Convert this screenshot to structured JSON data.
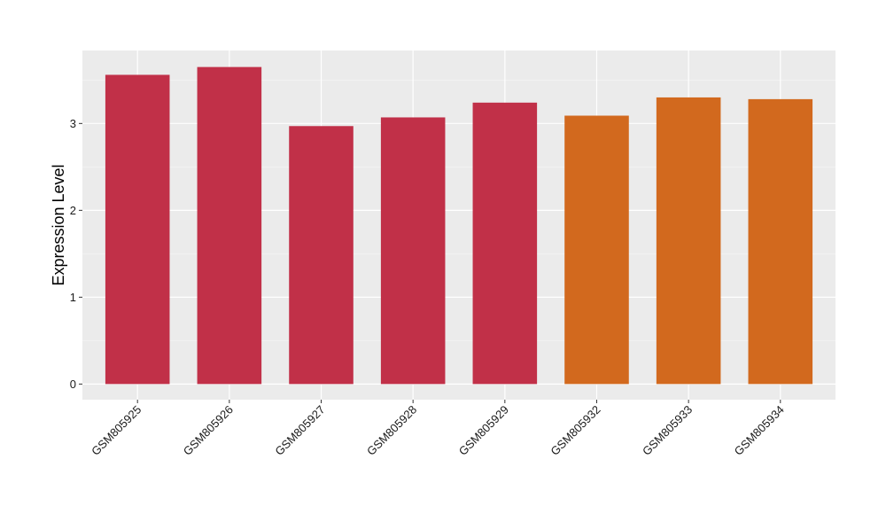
{
  "chart_data": {
    "type": "bar",
    "title": "",
    "xlabel": "",
    "ylabel": "Expression Level",
    "categories": [
      "GSM805925",
      "GSM805926",
      "GSM805927",
      "GSM805928",
      "GSM805929",
      "GSM805932",
      "GSM805933",
      "GSM805934"
    ],
    "values": [
      3.56,
      3.65,
      2.97,
      3.07,
      3.24,
      3.09,
      3.3,
      3.28
    ],
    "bar_colors": [
      "#C13048",
      "#C13048",
      "#C13048",
      "#C13048",
      "#C13048",
      "#D2691E",
      "#D2691E",
      "#D2691E"
    ],
    "ylim": [
      -0.18,
      3.84
    ],
    "yticks": [
      0,
      1,
      2,
      3
    ],
    "grid": true,
    "legend": "none"
  },
  "colors": {
    "panel_background": "#EBEBEB",
    "grid_major": "#FFFFFF",
    "grid_minor": "#F5F5F5",
    "tick_mark": "#333333"
  }
}
